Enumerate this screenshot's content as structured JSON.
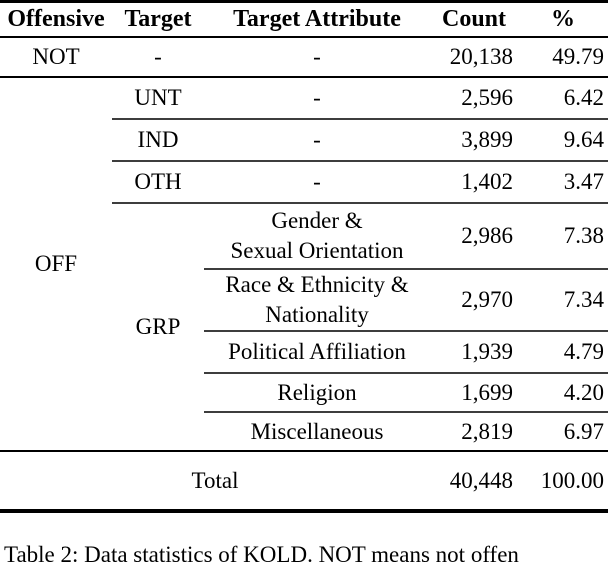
{
  "table": {
    "header": {
      "offensive": "Offensive",
      "target": "Target",
      "target_attribute": "Target Attribute",
      "count": "Count",
      "percent": "%"
    },
    "body": {
      "not_row": {
        "offensive": "NOT",
        "target": "-",
        "attr": "-",
        "count": "20,138",
        "percent": "49.79"
      },
      "off_label": "OFF",
      "grp_label": "GRP",
      "unt_row": {
        "target": "UNT",
        "attr": "-",
        "count": "2,596",
        "percent": "6.42"
      },
      "ind_row": {
        "target": "IND",
        "attr": "-",
        "count": "3,899",
        "percent": "9.64"
      },
      "oth_row": {
        "target": "OTH",
        "attr": "-",
        "count": "1,402",
        "percent": "3.47"
      },
      "gender_row": {
        "attr_line1": "Gender &",
        "attr_line2": "Sexual Orientation",
        "count": "2,986",
        "percent": "7.38"
      },
      "race_row": {
        "attr_line1": "Race & Ethnicity &",
        "attr_line2": "Nationality",
        "count": "2,970",
        "percent": "7.34"
      },
      "political_row": {
        "attr": "Political Affiliation",
        "count": "1,939",
        "percent": "4.79"
      },
      "religion_row": {
        "attr": "Religion",
        "count": "1,699",
        "percent": "4.20"
      },
      "misc_row": {
        "attr": "Miscellaneous",
        "count": "2,819",
        "percent": "6.97"
      },
      "total_row": {
        "label": "Total",
        "count": "40,448",
        "percent": "100.00"
      }
    }
  },
  "caption": {
    "text": "Table 2: Data statistics of KOLD. NOT means not offen"
  },
  "colors": {
    "text": "#000000",
    "background": "#ffffff",
    "rule": "#000000"
  }
}
